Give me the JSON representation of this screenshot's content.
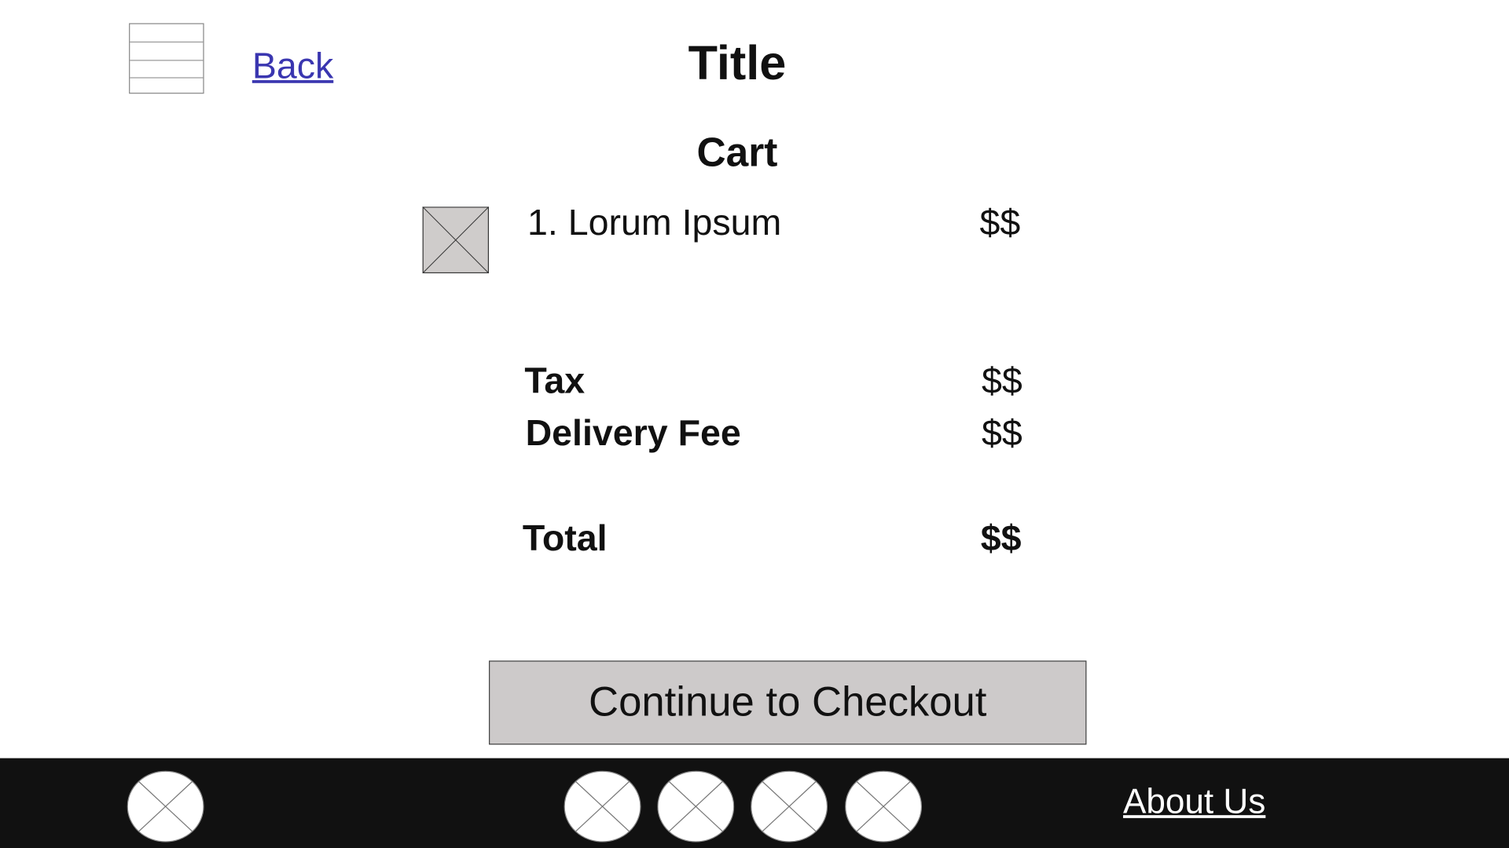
{
  "header": {
    "menu_icon": "hamburger-icon",
    "back_label": "Back",
    "title": "Title"
  },
  "cart": {
    "heading": "Cart",
    "items": [
      {
        "label": "1. Lorum Ipsum",
        "price": "$$",
        "image_icon": "image-placeholder-icon"
      }
    ],
    "tax_label": "Tax",
    "tax_value": "$$",
    "delivery_label": "Delivery Fee",
    "delivery_value": "$$",
    "total_label": "Total",
    "total_value": "$$"
  },
  "checkout_button": "Continue to Checkout",
  "footer": {
    "icons": [
      "image-placeholder-icon",
      "image-placeholder-icon",
      "image-placeholder-icon",
      "image-placeholder-icon",
      "image-placeholder-icon"
    ],
    "about_label": "About Us"
  },
  "colors": {
    "link": "#3a36b0",
    "button_bg": "#cdcaca",
    "footer_bg": "#111111"
  }
}
